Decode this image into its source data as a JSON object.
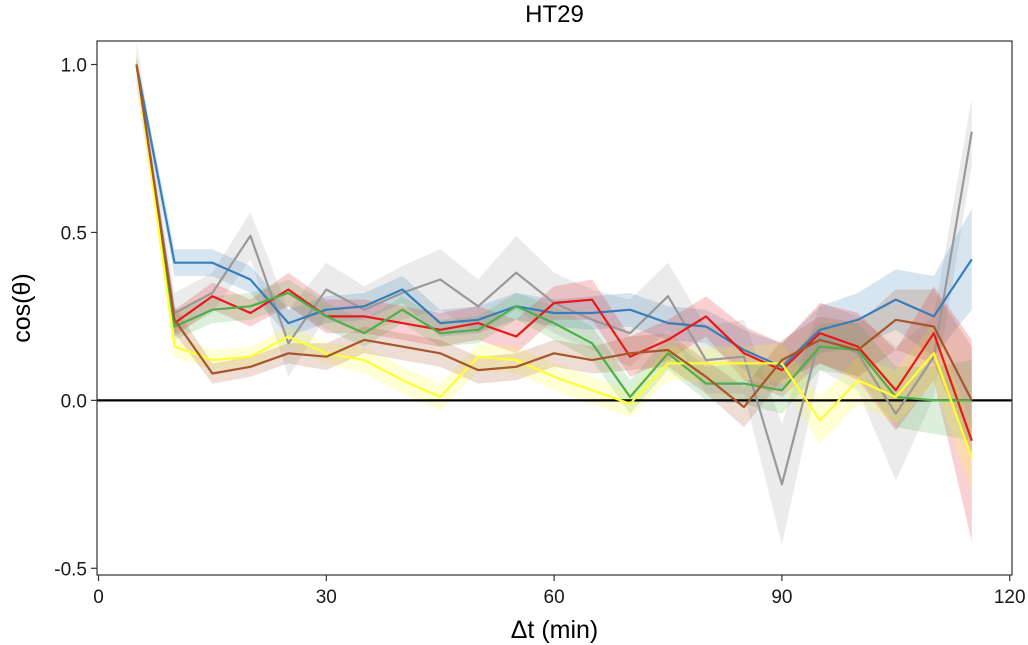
{
  "chart_data": {
    "type": "line",
    "title": "HT29",
    "xlabel": "Δt (min)",
    "ylabel": "cos(θ)",
    "xlim": [
      -0.2,
      120.3
    ],
    "ylim": [
      -0.52,
      1.07
    ],
    "xticks": [
      0,
      30,
      60,
      90,
      120
    ],
    "yticks": [
      -0.5,
      0.0,
      0.5,
      1.0
    ],
    "xtick_labels": [
      "0",
      "30",
      "60",
      "90",
      "120"
    ],
    "ytick_labels": [
      "-0.5",
      "0.0",
      "0.5",
      "1.0"
    ],
    "reference_line_y": 0,
    "grid": false,
    "legend": "none",
    "x": [
      5,
      10,
      15,
      20,
      25,
      30,
      35,
      40,
      45,
      50,
      55,
      60,
      65,
      70,
      75,
      80,
      85,
      90,
      95,
      100,
      105,
      110,
      115
    ],
    "series": [
      {
        "color": "#999999",
        "values": [
          1.0,
          0.26,
          0.32,
          0.49,
          0.17,
          0.33,
          0.27,
          0.32,
          0.36,
          0.28,
          0.38,
          0.29,
          0.24,
          0.2,
          0.31,
          0.12,
          0.13,
          -0.25,
          0.19,
          0.14,
          -0.04,
          0.13,
          0.8
        ],
        "band": [
          0.07,
          0.06,
          0.06,
          0.07,
          0.1,
          0.08,
          0.07,
          0.08,
          0.09,
          0.08,
          0.11,
          0.09,
          0.09,
          0.1,
          0.1,
          0.1,
          0.11,
          0.18,
          0.1,
          0.11,
          0.2,
          0.12,
          0.1
        ]
      },
      {
        "color": "#377eb8",
        "values": [
          1.0,
          0.41,
          0.41,
          0.36,
          0.23,
          0.27,
          0.28,
          0.33,
          0.23,
          0.24,
          0.28,
          0.26,
          0.26,
          0.27,
          0.23,
          0.22,
          0.15,
          0.1,
          0.21,
          0.24,
          0.3,
          0.25,
          0.42
        ],
        "band": [
          0.02,
          0.04,
          0.04,
          0.04,
          0.04,
          0.04,
          0.04,
          0.04,
          0.04,
          0.04,
          0.04,
          0.04,
          0.05,
          0.05,
          0.05,
          0.05,
          0.06,
          0.07,
          0.07,
          0.08,
          0.09,
          0.12,
          0.15
        ]
      },
      {
        "color": "#e41a1c",
        "values": [
          1.0,
          0.23,
          0.31,
          0.26,
          0.33,
          0.25,
          0.25,
          0.23,
          0.21,
          0.23,
          0.19,
          0.29,
          0.3,
          0.13,
          0.18,
          0.25,
          0.14,
          0.09,
          0.2,
          0.16,
          0.03,
          0.2,
          -0.12
        ],
        "band": [
          0.02,
          0.04,
          0.04,
          0.04,
          0.05,
          0.05,
          0.05,
          0.05,
          0.05,
          0.05,
          0.05,
          0.05,
          0.06,
          0.06,
          0.06,
          0.06,
          0.08,
          0.08,
          0.09,
          0.1,
          0.12,
          0.14,
          0.3
        ]
      },
      {
        "color": "#4daf4a",
        "values": [
          1.0,
          0.22,
          0.27,
          0.28,
          0.32,
          0.25,
          0.2,
          0.27,
          0.2,
          0.21,
          0.28,
          0.23,
          0.17,
          0.01,
          0.14,
          0.05,
          0.05,
          0.03,
          0.16,
          0.15,
          0.01,
          0.0,
          0.0
        ],
        "band": [
          0.02,
          0.04,
          0.04,
          0.04,
          0.04,
          0.04,
          0.04,
          0.04,
          0.04,
          0.04,
          0.04,
          0.05,
          0.05,
          0.05,
          0.05,
          0.05,
          0.06,
          0.07,
          0.07,
          0.08,
          0.09,
          0.1,
          0.12
        ]
      },
      {
        "color": "#ffff33",
        "values": [
          1.0,
          0.16,
          0.12,
          0.13,
          0.19,
          0.14,
          0.12,
          0.06,
          0.01,
          0.13,
          0.12,
          0.07,
          0.03,
          -0.01,
          0.11,
          0.11,
          0.11,
          0.11,
          -0.06,
          0.06,
          0.01,
          0.14,
          -0.17
        ],
        "band": [
          0.02,
          0.03,
          0.03,
          0.03,
          0.03,
          0.03,
          0.04,
          0.04,
          0.04,
          0.04,
          0.04,
          0.04,
          0.04,
          0.04,
          0.05,
          0.05,
          0.05,
          0.06,
          0.07,
          0.07,
          0.08,
          0.09,
          0.1
        ]
      },
      {
        "color": "#a65628",
        "values": [
          1.0,
          0.24,
          0.08,
          0.1,
          0.14,
          0.13,
          0.18,
          0.16,
          0.14,
          0.09,
          0.1,
          0.14,
          0.12,
          0.14,
          0.15,
          0.07,
          -0.02,
          0.12,
          0.18,
          0.15,
          0.24,
          0.22,
          0.0
        ],
        "band": [
          0.02,
          0.04,
          0.03,
          0.03,
          0.03,
          0.04,
          0.04,
          0.04,
          0.04,
          0.04,
          0.04,
          0.04,
          0.04,
          0.05,
          0.05,
          0.05,
          0.06,
          0.06,
          0.07,
          0.08,
          0.09,
          0.11,
          0.16
        ]
      }
    ]
  }
}
